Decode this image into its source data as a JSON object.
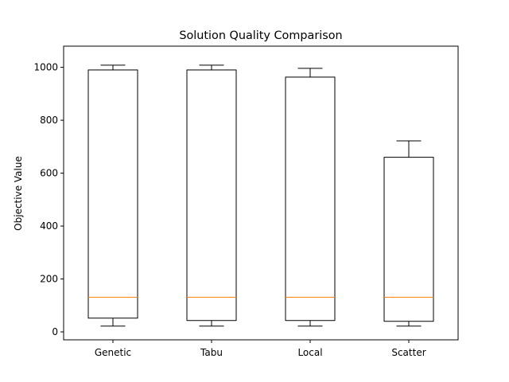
{
  "chart_data": {
    "type": "box",
    "title": "Solution Quality Comparison",
    "xlabel": "",
    "ylabel": "Objective Value",
    "ylim": [
      -30,
      1080
    ],
    "yticks": [
      0,
      200,
      400,
      600,
      800,
      1000
    ],
    "categories": [
      "Genetic",
      "Tabu",
      "Local",
      "Scatter"
    ],
    "boxes": [
      {
        "whisker_low": 22,
        "q1": 52,
        "median": 131,
        "q3": 990,
        "whisker_high": 1008
      },
      {
        "whisker_low": 22,
        "q1": 43,
        "median": 131,
        "q3": 990,
        "whisker_high": 1008
      },
      {
        "whisker_low": 22,
        "q1": 43,
        "median": 131,
        "q3": 963,
        "whisker_high": 996
      },
      {
        "whisker_low": 22,
        "q1": 40,
        "median": 131,
        "q3": 660,
        "whisker_high": 722
      }
    ],
    "colors": {
      "box": "#000000",
      "median": "#ff7f0e",
      "frame": "#000000"
    }
  }
}
